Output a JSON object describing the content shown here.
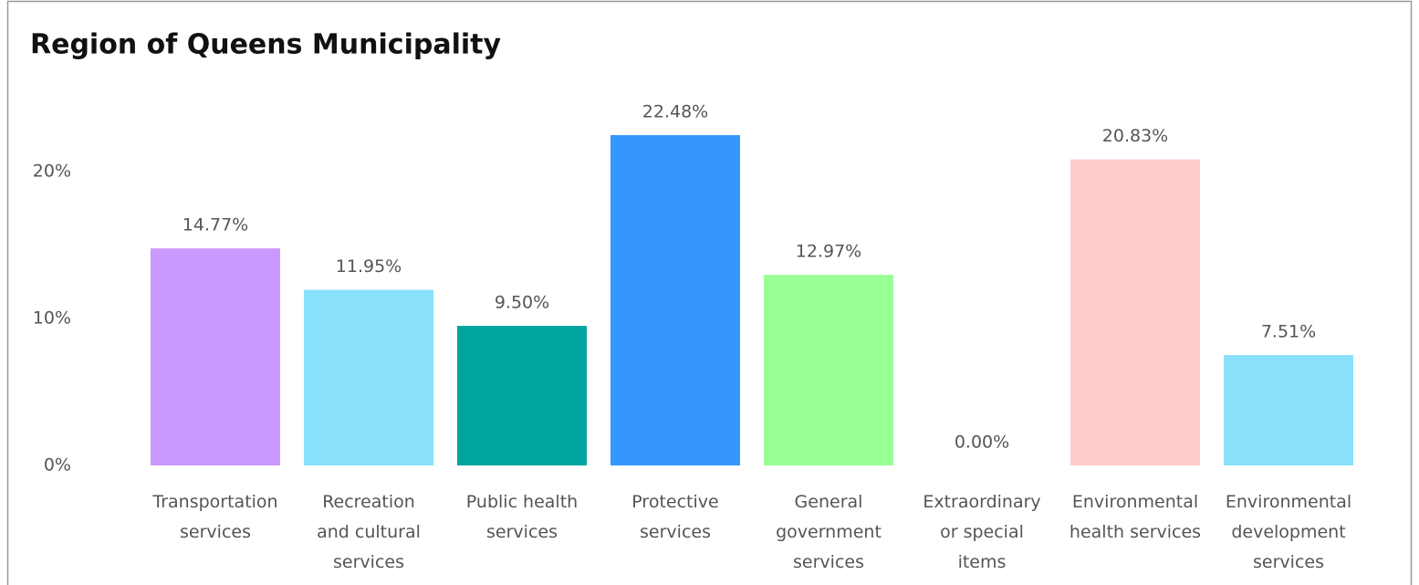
{
  "chart_data": {
    "type": "bar",
    "title": "Region of Queens Municipality",
    "categories": [
      "Transportation\nservices",
      "Recreation\nand cultural\nservices",
      "Public health\nservices",
      "Protective\nservices",
      "General\ngovernment\nservices",
      "Extraordinary\nor special\nitems",
      "Environmental\nhealth services",
      "Environmental\ndevelopment\nservices"
    ],
    "values": [
      14.77,
      11.95,
      9.5,
      22.48,
      12.97,
      0.0,
      20.83,
      7.51
    ],
    "value_labels": [
      "14.77%",
      "11.95%",
      "9.50%",
      "22.48%",
      "12.97%",
      "0.00%",
      "20.83%",
      "7.51%"
    ],
    "colors": [
      "#c999fd",
      "#8ae1fb",
      "#00a5a0",
      "#3596fe",
      "#99fe94",
      "#b0b0b0",
      "#fecccb",
      "#8ae1fb"
    ],
    "ylim": [
      0,
      25
    ],
    "yticks": [
      {
        "value": 0,
        "label": "0%"
      },
      {
        "value": 10,
        "label": "10%"
      },
      {
        "value": 20,
        "label": "20%"
      }
    ],
    "grid": false
  }
}
